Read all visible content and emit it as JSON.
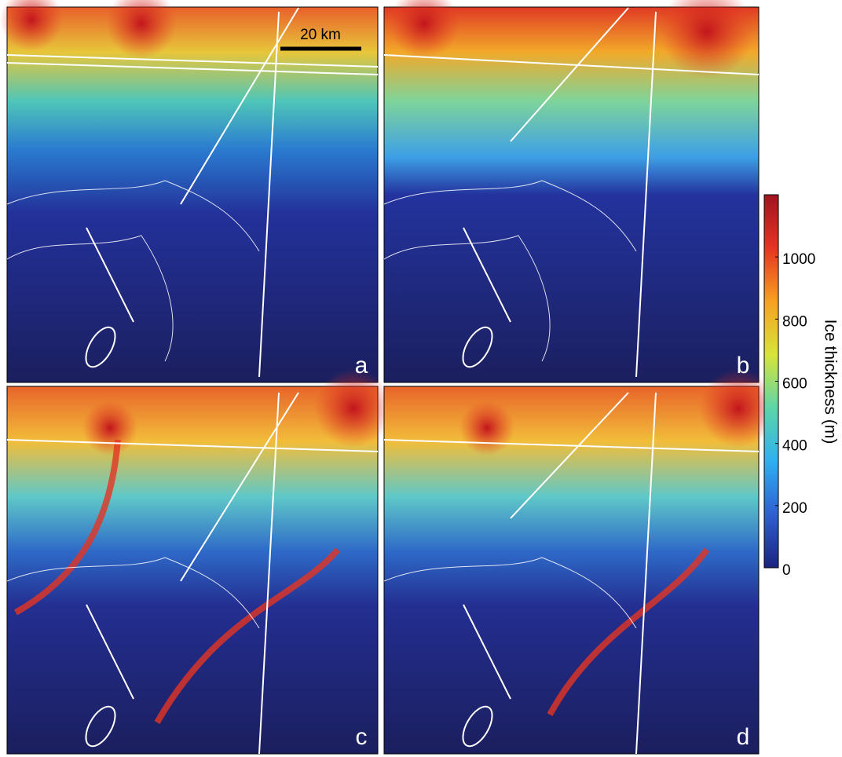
{
  "scale_bar": "20 km",
  "panels": [
    {
      "label": "a"
    },
    {
      "label": "b"
    },
    {
      "label": "c"
    },
    {
      "label": "d"
    }
  ],
  "colorbar": {
    "label": "Ice thickness (m)",
    "lim": [
      0,
      1200
    ],
    "ticks": [
      0,
      200,
      400,
      600,
      800,
      1000
    ],
    "colormap": [
      "#1a237e",
      "#2f5fd0",
      "#2fb0f0",
      "#5ed5a8",
      "#d8e43a",
      "#f6a021",
      "#e53422",
      "#a01420"
    ]
  }
}
